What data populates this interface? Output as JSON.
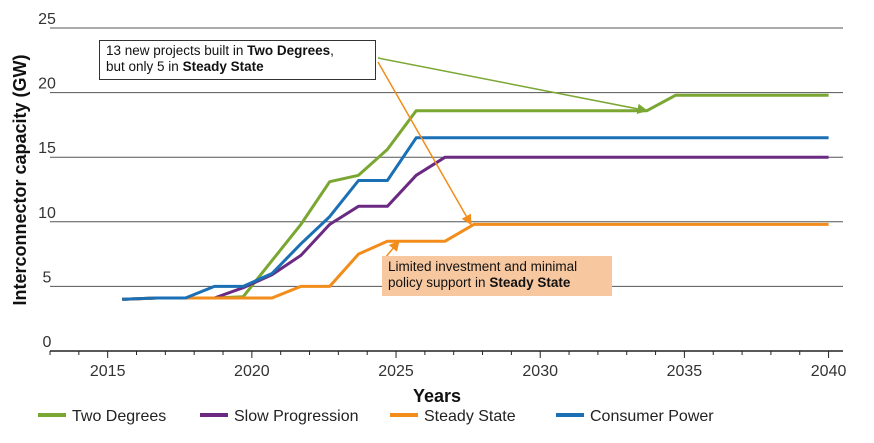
{
  "chart_data": {
    "type": "line",
    "xlabel": "Years",
    "ylabel": "Interconnector capacity (GW)",
    "xlim": [
      2013,
      2040.5
    ],
    "ylim": [
      0,
      25
    ],
    "x_ticks": [
      2015,
      2020,
      2025,
      2030,
      2035,
      2040
    ],
    "y_ticks": [
      0,
      5,
      10,
      15,
      20,
      25
    ],
    "grid": "horizontal",
    "legend_position": "bottom",
    "series": [
      {
        "name": "Two Degrees",
        "color": "#7aa632",
        "x": [
          2015.5,
          2016.7,
          2017.7,
          2018.7,
          2019.7,
          2020.7,
          2021.7,
          2022.7,
          2023.7,
          2024.7,
          2025.7,
          2026.7,
          2033.7,
          2034.7,
          2040
        ],
        "y": [
          4.0,
          4.1,
          4.1,
          4.1,
          4.2,
          7.0,
          9.8,
          13.1,
          13.6,
          15.6,
          18.6,
          18.6,
          18.6,
          19.8,
          19.8
        ]
      },
      {
        "name": "Slow Progression",
        "color": "#6b2a82",
        "x": [
          2015.5,
          2016.7,
          2017.7,
          2018.7,
          2019.7,
          2020.7,
          2021.7,
          2022.7,
          2023.7,
          2024.7,
          2025.7,
          2026.7,
          2040
        ],
        "y": [
          4.0,
          4.1,
          4.1,
          4.1,
          4.9,
          5.9,
          7.4,
          9.8,
          11.2,
          11.2,
          13.6,
          15.0,
          15.0
        ]
      },
      {
        "name": "Steady State",
        "color": "#f28c1a",
        "x": [
          2015.5,
          2016.7,
          2017.7,
          2018.7,
          2019.7,
          2020.7,
          2021.7,
          2022.7,
          2023.7,
          2024.7,
          2025.7,
          2026.7,
          2027.7,
          2040
        ],
        "y": [
          4.0,
          4.1,
          4.1,
          4.1,
          4.1,
          4.1,
          5.0,
          5.0,
          7.5,
          8.5,
          8.5,
          8.5,
          9.8,
          9.8
        ]
      },
      {
        "name": "Consumer Power",
        "color": "#1a6fb5",
        "x": [
          2015.5,
          2016.7,
          2017.7,
          2018.7,
          2019.7,
          2020.7,
          2021.7,
          2022.7,
          2023.7,
          2024.7,
          2025.7,
          2040
        ],
        "y": [
          4.0,
          4.1,
          4.1,
          5.0,
          5.0,
          6.0,
          8.3,
          10.4,
          13.2,
          13.2,
          16.5,
          16.5
        ]
      }
    ],
    "annotations": [
      {
        "parts": [
          [
            "13 new projects built in ",
            false
          ],
          [
            "Two Degrees",
            true
          ],
          [
            ",",
            false
          ],
          [
            "\n",
            false
          ],
          [
            "but only 5 in ",
            false
          ],
          [
            "Steady State",
            true
          ]
        ],
        "style": "white box with dark border",
        "arrows": [
          {
            "series": "Two Degrees",
            "to": [
              2033.7,
              18.6
            ]
          },
          {
            "series": "Steady State",
            "to": [
              2027.6,
              9.8
            ]
          }
        ]
      },
      {
        "parts": [
          [
            "Limited investment and minimal",
            false
          ],
          [
            "\n",
            false
          ],
          [
            "policy support in ",
            false
          ],
          [
            "Steady State",
            true
          ]
        ],
        "style": "orange filled box",
        "arrows": [
          {
            "series": "Steady State",
            "to": [
              2025.1,
              8.5
            ]
          }
        ]
      }
    ]
  }
}
